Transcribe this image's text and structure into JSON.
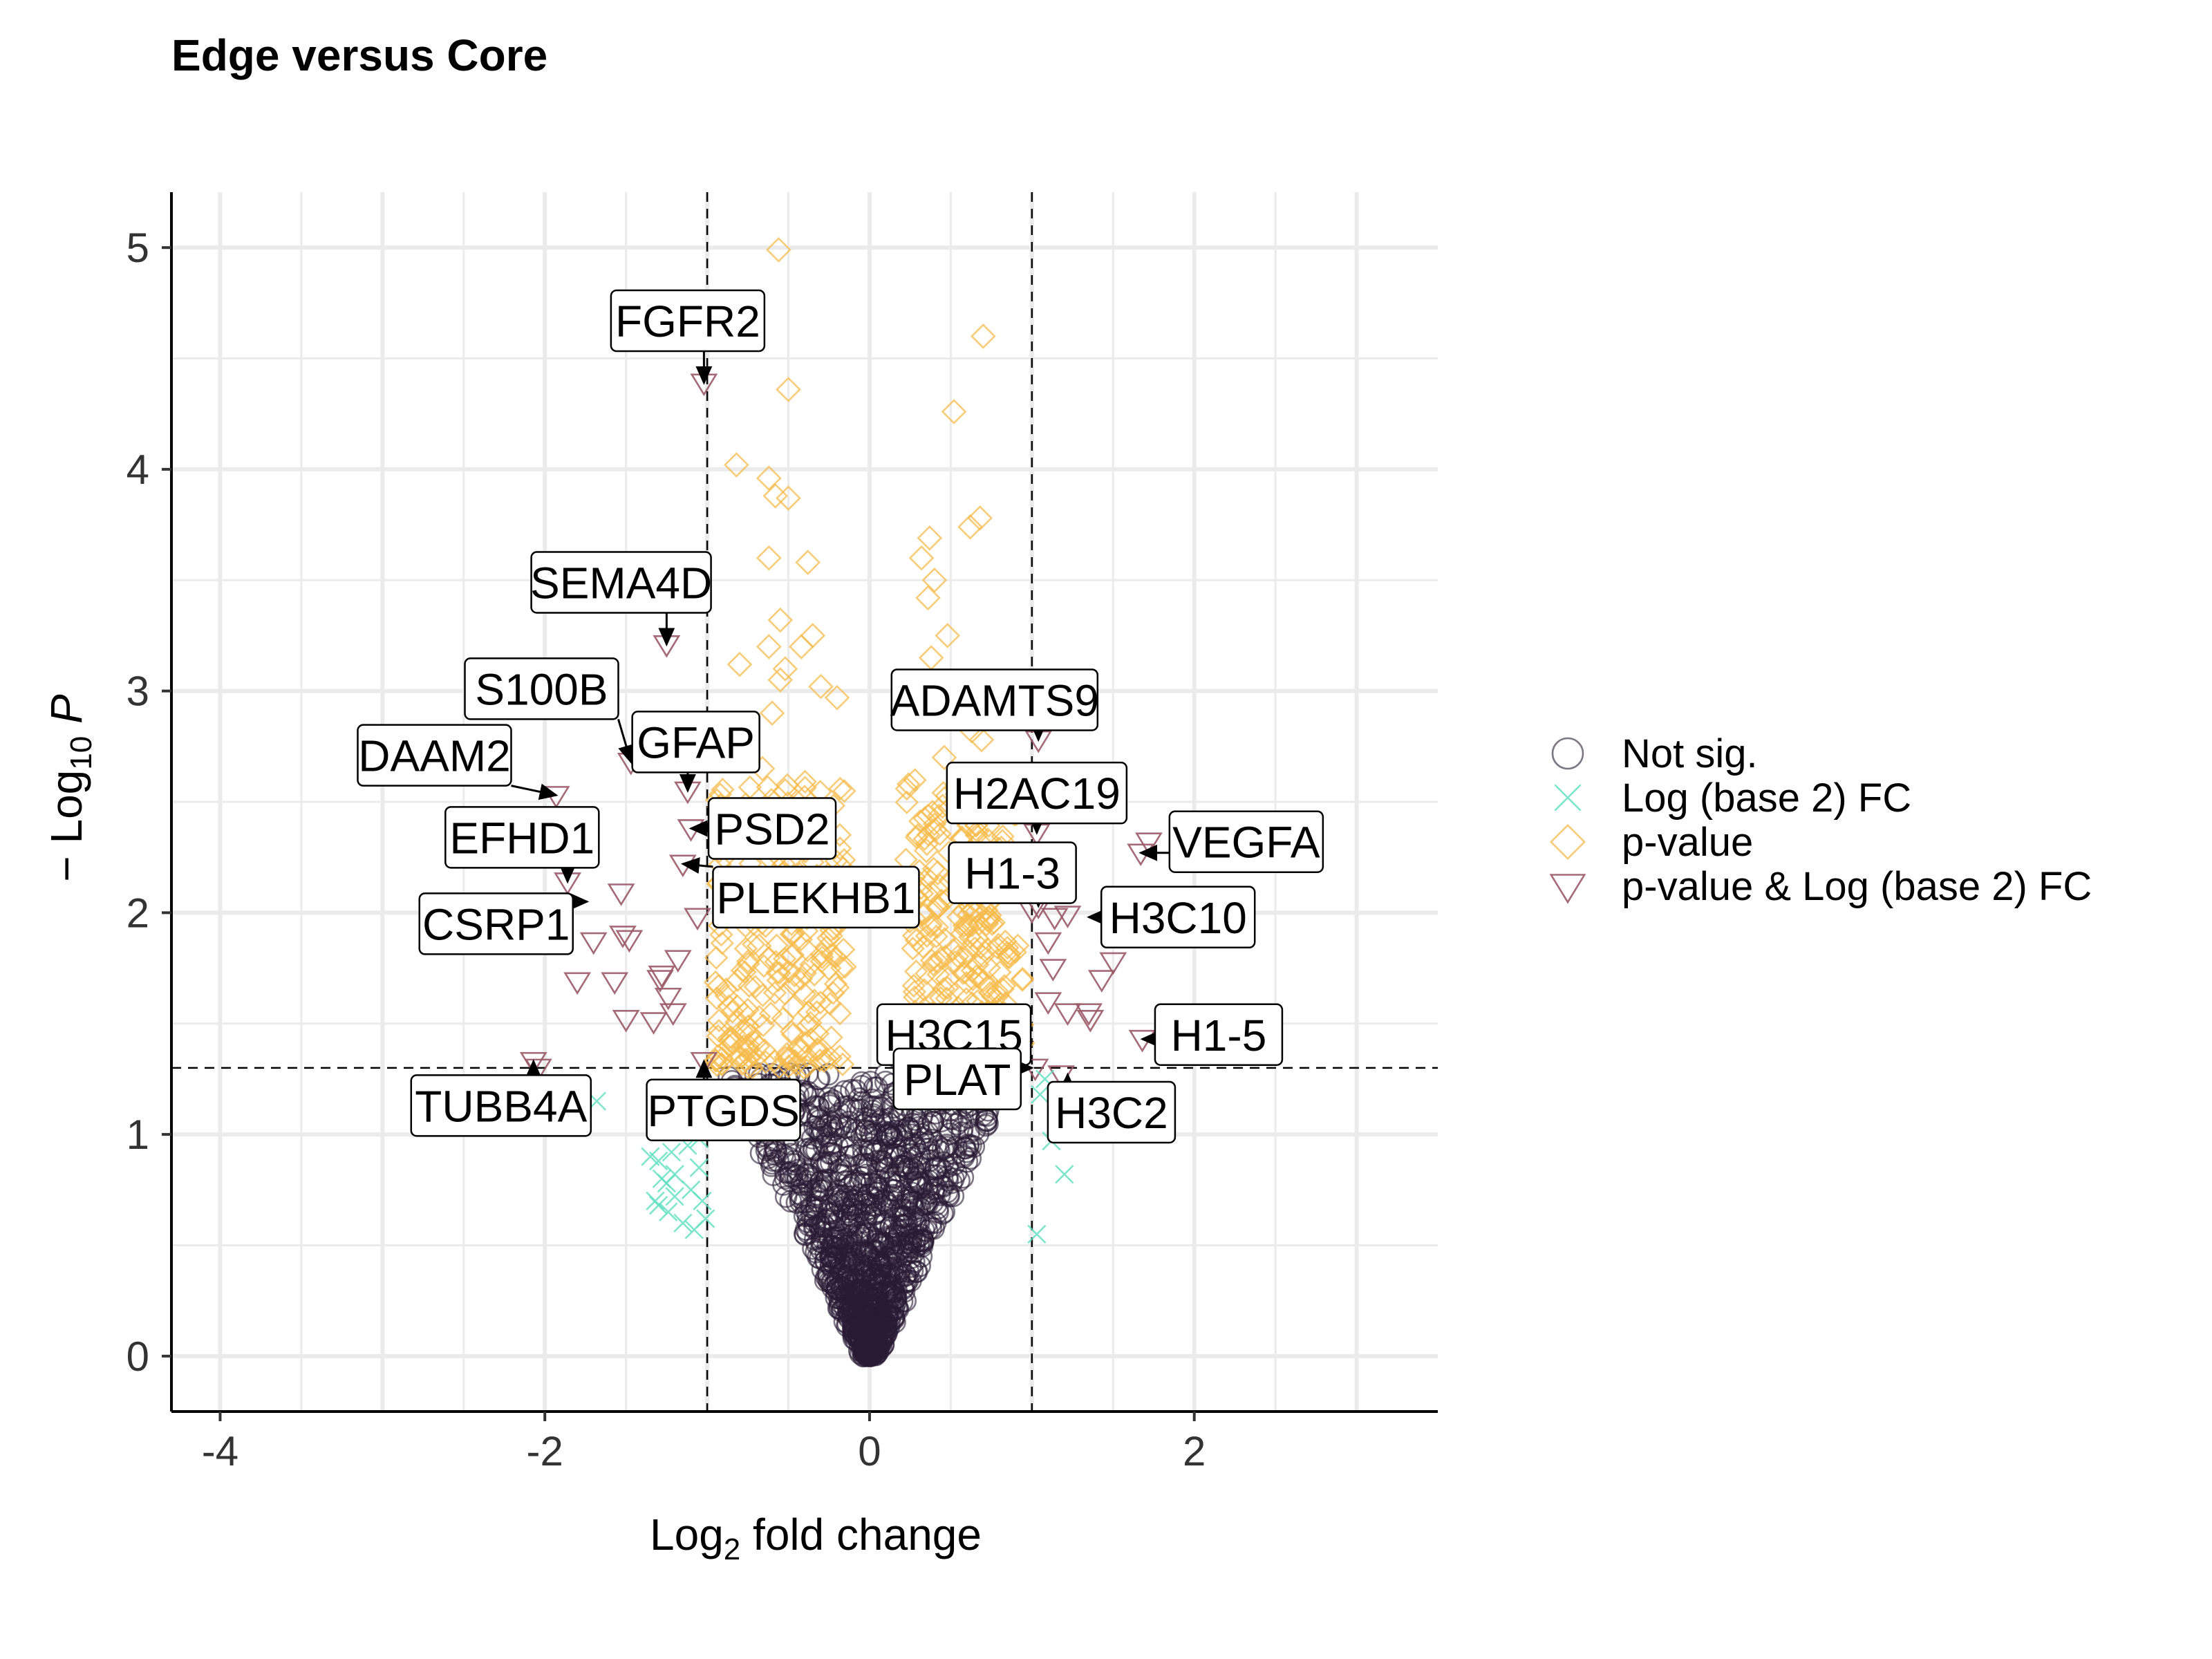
{
  "chart_data": {
    "type": "scatter",
    "title": "Edge versus Core",
    "xlabel": {
      "base": "Log",
      "sub": "2",
      "rest": " fold change"
    },
    "ylabel": {
      "pre": "− Log",
      "sub": "10",
      "italic": " P"
    },
    "xlim": [
      -4.3,
      3.5
    ],
    "ylim": [
      -0.25,
      5.25
    ],
    "x_ticks": [
      -4,
      -2,
      0,
      2
    ],
    "x_tick_labels": [
      "-4",
      "-2",
      "0",
      "2"
    ],
    "y_ticks": [
      0,
      1,
      2,
      3,
      4,
      5
    ],
    "y_tick_labels": [
      "0",
      "1",
      "2",
      "3",
      "4",
      "5"
    ],
    "grid": true,
    "cutoffs": {
      "fc": [
        -1,
        1
      ],
      "p": 1.3
    },
    "legend": {
      "position": "right",
      "entries": [
        {
          "label": "Not sig.",
          "shape": "circle",
          "color": "#2a1a33"
        },
        {
          "label": "Log (base 2) FC",
          "shape": "cross",
          "color": "#5fe0c0"
        },
        {
          "label": "p-value",
          "shape": "diamond",
          "color": "#f5bb4b"
        },
        {
          "label": "p-value & Log (base 2) FC",
          "shape": "triangle-down",
          "color": "#9a5a68"
        }
      ]
    },
    "series": [
      {
        "name": "p-value & Log (base 2) FC",
        "shape": "triangle-down",
        "color": "#9a5a68",
        "x": [
          -1.02,
          -1.25,
          -1.47,
          -1.93,
          -1.12,
          -1.1,
          -1.15,
          -1.86,
          -1.53,
          -1.7,
          -1.52,
          -1.48,
          -1.57,
          -1.18,
          -1.28,
          -1.06,
          -1.8,
          -1.33,
          -1.24,
          -1.21,
          -1.29,
          -1.5,
          -2.07,
          -2.04,
          -1.02,
          1.04,
          1.03,
          1.04,
          1.67,
          1.72,
          1.0,
          1.14,
          1.22,
          1.1,
          1.13,
          1.43,
          1.5,
          1.35,
          1.1,
          1.22,
          1.36,
          1.68,
          1.18,
          1.02
        ],
        "y": [
          4.39,
          3.21,
          2.68,
          2.53,
          2.55,
          2.38,
          2.22,
          2.14,
          2.09,
          1.87,
          1.9,
          1.88,
          1.69,
          1.79,
          1.72,
          1.98,
          1.69,
          1.51,
          1.62,
          1.55,
          1.7,
          1.52,
          1.33,
          1.3,
          1.33,
          2.78,
          2.36,
          2.03,
          2.27,
          2.32,
          2.01,
          1.98,
          1.99,
          1.87,
          1.75,
          1.7,
          1.78,
          1.55,
          1.6,
          1.55,
          1.52,
          1.43,
          1.27,
          1.3
        ]
      },
      {
        "name": "Log (base 2) FC",
        "shape": "cross",
        "color": "#5fe0c0",
        "x": [
          -1.68,
          -1.3,
          -1.24,
          -1.15,
          -1.2,
          -1.1,
          -1.12,
          -1.05,
          -1.03,
          -1.2,
          -1.25,
          -1.3,
          -1.35,
          -1.05,
          -1.18,
          -1.22,
          -1.28,
          -1.32,
          -1.01,
          -1.08,
          1.05,
          1.12,
          1.2,
          1.26,
          1.03,
          1.08
        ],
        "y": [
          1.15,
          0.88,
          0.65,
          0.6,
          0.82,
          0.75,
          0.95,
          0.85,
          0.7,
          0.72,
          0.78,
          0.68,
          0.9,
          0.98,
          1.05,
          0.92,
          0.8,
          0.7,
          0.62,
          0.57,
          1.18,
          0.97,
          0.82,
          1.05,
          0.55,
          1.25
        ]
      },
      {
        "name": "p-value",
        "shape": "diamond",
        "color": "#f5bb4b",
        "x": [
          -0.56,
          0.7,
          -0.5,
          0.52,
          -0.82,
          -0.62,
          -0.58,
          -0.5,
          0.68,
          0.62,
          0.37,
          -0.62,
          -0.38,
          0.32,
          0.4,
          0.36,
          -0.55,
          -0.62,
          0.48,
          0.38,
          -0.42,
          -0.35,
          -0.52,
          -0.8,
          -0.3,
          -0.55,
          -0.2,
          -0.6,
          0.5,
          0.63,
          0.69,
          0.46,
          -0.66,
          0.58,
          -0.52,
          -0.4,
          0.45,
          0.55,
          -0.35,
          0.5,
          -0.45,
          -0.62,
          0.35,
          0.42,
          0.6,
          -0.3,
          0.55,
          0.72,
          -0.68,
          -0.25,
          0.48
        ],
        "y": [
          4.99,
          4.6,
          4.36,
          4.26,
          4.02,
          3.96,
          3.88,
          3.87,
          3.78,
          3.74,
          3.69,
          3.6,
          3.58,
          3.6,
          3.5,
          3.42,
          3.32,
          3.2,
          3.25,
          3.15,
          3.2,
          3.25,
          3.1,
          3.12,
          3.02,
          3.05,
          2.97,
          2.9,
          2.88,
          2.82,
          2.78,
          2.7,
          2.65,
          2.6,
          2.55,
          2.52,
          2.48,
          2.45,
          2.42,
          2.38,
          2.32,
          2.25,
          2.28,
          2.18,
          2.12,
          2.05,
          1.98,
          1.95,
          1.85,
          1.75,
          1.7
        ]
      }
    ],
    "density_regions": [
      {
        "name": "Not sig.",
        "shape": "circle",
        "color": "#2a1a33",
        "y_range": [
          0,
          1.3
        ]
      },
      {
        "name": "p-value",
        "shape": "diamond",
        "color": "#f5bb4b",
        "y_range": [
          1.3,
          2.6
        ]
      }
    ],
    "annotations": [
      {
        "label": "FGFR2",
        "x": -1.02,
        "y": 4.39
      },
      {
        "label": "SEMA4D",
        "x": -1.25,
        "y": 3.21
      },
      {
        "label": "S100B",
        "x": -1.47,
        "y": 2.68
      },
      {
        "label": "DAAM2",
        "x": -1.93,
        "y": 2.53
      },
      {
        "label": "GFAP",
        "x": -1.12,
        "y": 2.55
      },
      {
        "label": "PSD2",
        "x": -1.1,
        "y": 2.38
      },
      {
        "label": "EFHD1",
        "x": -1.86,
        "y": 2.14
      },
      {
        "label": "PLEKHB1",
        "x": -1.15,
        "y": 2.22
      },
      {
        "label": "CSRP1",
        "x": -1.74,
        "y": 2.05
      },
      {
        "label": "TUBB4A",
        "x": -2.07,
        "y": 1.33
      },
      {
        "label": "PTGDS",
        "x": -1.02,
        "y": 1.33
      },
      {
        "label": "ADAMTS9",
        "x": 1.04,
        "y": 2.78
      },
      {
        "label": "H2AC19",
        "x": 1.03,
        "y": 2.36
      },
      {
        "label": "VEGFA",
        "x": 1.67,
        "y": 2.27
      },
      {
        "label": "H1-3",
        "x": 1.04,
        "y": 2.03
      },
      {
        "label": "H3C10",
        "x": 1.35,
        "y": 1.98
      },
      {
        "label": "H3C15",
        "x": 1.0,
        "y": 1.42
      },
      {
        "label": "H1-5",
        "x": 1.68,
        "y": 1.43
      },
      {
        "label": "PLAT",
        "x": 1.0,
        "y": 1.3
      },
      {
        "label": "H3C2",
        "x": 1.22,
        "y": 1.27
      }
    ]
  }
}
